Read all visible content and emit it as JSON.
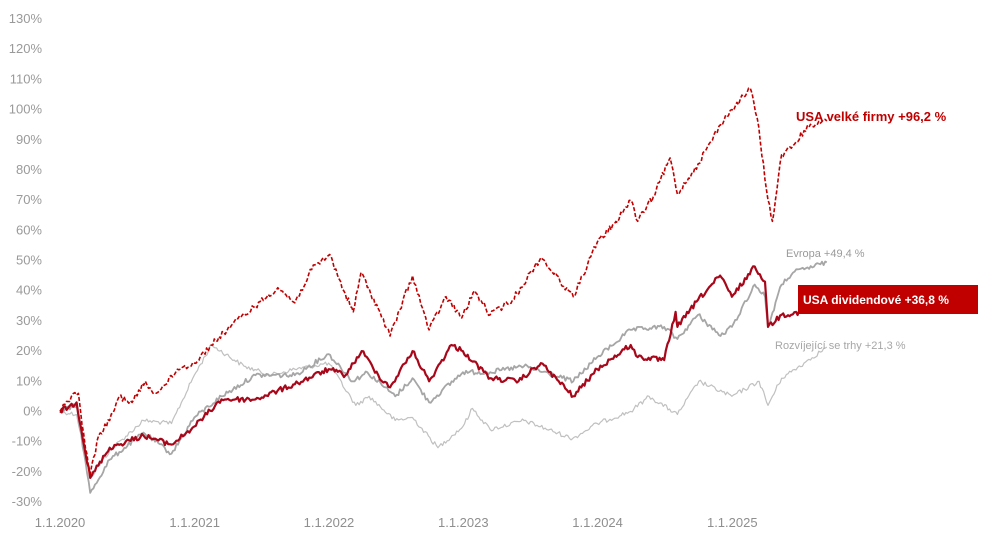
{
  "chart_data": {
    "type": "line",
    "title": "",
    "xlabel": "",
    "ylabel": "",
    "xlim": [
      "2020-01-01",
      "2026-06-01"
    ],
    "ylim": [
      -30,
      130
    ],
    "yticks": [
      "-30%",
      "-20%",
      "-10%",
      "0%",
      "10%",
      "20%",
      "30%",
      "40%",
      "50%",
      "60%",
      "70%",
      "80%",
      "90%",
      "100%",
      "110%",
      "120%",
      "130%"
    ],
    "xticks": [
      {
        "date": "2020-01-01",
        "label": "1.1.2020"
      },
      {
        "date": "2021-01-01",
        "label": "1.1.2021"
      },
      {
        "date": "2022-01-01",
        "label": "1.1.2022"
      },
      {
        "date": "2023-01-01",
        "label": "1.1.2023"
      },
      {
        "date": "2024-01-01",
        "label": "1.1.2024"
      },
      {
        "date": "2025-01-01",
        "label": "1.1.2025"
      }
    ],
    "grid": false,
    "legend": "none",
    "series": [
      {
        "name": "USA velké firmy",
        "label": "USA velké firmy +96,2 %",
        "color": "#c00000",
        "dash": "dashed",
        "points": [
          [
            "2020-01-01",
            0
          ],
          [
            "2020-02-01",
            5
          ],
          [
            "2020-02-20",
            6
          ],
          [
            "2020-03-10",
            -12
          ],
          [
            "2020-03-23",
            -21
          ],
          [
            "2020-04-15",
            -8
          ],
          [
            "2020-05-15",
            -3
          ],
          [
            "2020-06-10",
            5
          ],
          [
            "2020-07-15",
            3
          ],
          [
            "2020-08-20",
            10
          ],
          [
            "2020-09-10",
            6
          ],
          [
            "2020-10-15",
            9
          ],
          [
            "2020-11-15",
            14
          ],
          [
            "2020-12-31",
            16
          ],
          [
            "2021-02-15",
            22
          ],
          [
            "2021-04-15",
            29
          ],
          [
            "2021-06-15",
            35
          ],
          [
            "2021-08-15",
            41
          ],
          [
            "2021-09-30",
            36
          ],
          [
            "2021-11-15",
            47
          ],
          [
            "2022-01-03",
            52
          ],
          [
            "2022-02-10",
            40
          ],
          [
            "2022-03-08",
            33
          ],
          [
            "2022-03-29",
            46
          ],
          [
            "2022-05-15",
            34
          ],
          [
            "2022-06-16",
            25
          ],
          [
            "2022-08-16",
            45
          ],
          [
            "2022-09-30",
            27
          ],
          [
            "2022-11-15",
            38
          ],
          [
            "2022-12-28",
            31
          ],
          [
            "2023-02-01",
            40
          ],
          [
            "2023-03-15",
            32
          ],
          [
            "2023-05-15",
            37
          ],
          [
            "2023-07-31",
            51
          ],
          [
            "2023-10-27",
            38
          ],
          [
            "2023-12-31",
            56
          ],
          [
            "2024-02-15",
            62
          ],
          [
            "2024-03-31",
            70
          ],
          [
            "2024-04-19",
            63
          ],
          [
            "2024-05-31",
            71
          ],
          [
            "2024-07-16",
            84
          ],
          [
            "2024-08-05",
            72
          ],
          [
            "2024-09-30",
            82
          ],
          [
            "2024-11-30",
            95
          ],
          [
            "2024-12-31",
            100
          ],
          [
            "2025-02-19",
            107
          ],
          [
            "2025-03-10",
            97
          ],
          [
            "2025-04-08",
            70
          ],
          [
            "2025-04-20",
            63
          ],
          [
            "2025-05-15",
            85
          ],
          [
            "2025-06-15",
            88
          ],
          [
            "2025-07-15",
            93
          ],
          [
            "2025-08-15",
            95
          ],
          [
            "2025-09-15",
            96.2
          ]
        ]
      },
      {
        "name": "USA dividendové",
        "label": "USA dividendové +36,8 %",
        "color": "#a8071a",
        "dash": "solid",
        "points": [
          [
            "2020-01-01",
            0
          ],
          [
            "2020-02-15",
            3
          ],
          [
            "2020-03-23",
            -22
          ],
          [
            "2020-05-15",
            -12
          ],
          [
            "2020-08-15",
            -8
          ],
          [
            "2020-10-30",
            -11
          ],
          [
            "2020-12-31",
            -5
          ],
          [
            "2021-03-15",
            4
          ],
          [
            "2021-06-15",
            4
          ],
          [
            "2021-09-30",
            9
          ],
          [
            "2021-12-31",
            14
          ],
          [
            "2022-02-15",
            12
          ],
          [
            "2022-03-31",
            20
          ],
          [
            "2022-05-15",
            12
          ],
          [
            "2022-06-16",
            8
          ],
          [
            "2022-08-16",
            20
          ],
          [
            "2022-09-30",
            10
          ],
          [
            "2022-11-30",
            22
          ],
          [
            "2022-12-31",
            20
          ],
          [
            "2023-03-15",
            11
          ],
          [
            "2023-05-31",
            10
          ],
          [
            "2023-07-31",
            16
          ],
          [
            "2023-10-27",
            5
          ],
          [
            "2023-12-31",
            14
          ],
          [
            "2024-03-31",
            22
          ],
          [
            "2024-04-19",
            18
          ],
          [
            "2024-06-30",
            17
          ],
          [
            "2024-07-31",
            33
          ],
          [
            "2024-08-05",
            28
          ],
          [
            "2024-09-30",
            37
          ],
          [
            "2024-11-29",
            45
          ],
          [
            "2024-12-31",
            38
          ],
          [
            "2025-03-03",
            48
          ],
          [
            "2025-03-31",
            43
          ],
          [
            "2025-04-08",
            28
          ],
          [
            "2025-05-15",
            32
          ],
          [
            "2025-07-15",
            33
          ],
          [
            "2025-09-15",
            36.8
          ]
        ]
      },
      {
        "name": "Evropa",
        "label": "Evropa +49,4 %",
        "color": "#a6a6a6",
        "dash": "solid",
        "points": [
          [
            "2020-01-01",
            0
          ],
          [
            "2020-02-15",
            2
          ],
          [
            "2020-03-23",
            -27
          ],
          [
            "2020-05-15",
            -16
          ],
          [
            "2020-08-15",
            -7
          ],
          [
            "2020-10-30",
            -14
          ],
          [
            "2020-12-31",
            -2
          ],
          [
            "2021-03-15",
            5
          ],
          [
            "2021-06-15",
            12
          ],
          [
            "2021-09-30",
            12
          ],
          [
            "2021-12-31",
            19
          ],
          [
            "2022-03-07",
            10
          ],
          [
            "2022-04-15",
            13
          ],
          [
            "2022-06-30",
            5
          ],
          [
            "2022-08-16",
            11
          ],
          [
            "2022-09-30",
            3
          ],
          [
            "2022-12-31",
            13
          ],
          [
            "2023-03-15",
            13
          ],
          [
            "2023-06-15",
            15
          ],
          [
            "2023-10-27",
            10
          ],
          [
            "2023-12-31",
            18
          ],
          [
            "2024-03-31",
            27
          ],
          [
            "2024-06-30",
            28
          ],
          [
            "2024-08-05",
            24
          ],
          [
            "2024-09-30",
            32
          ],
          [
            "2024-11-30",
            25
          ],
          [
            "2024-12-31",
            28
          ],
          [
            "2025-03-03",
            42
          ],
          [
            "2025-03-31",
            38
          ],
          [
            "2025-04-08",
            28
          ],
          [
            "2025-05-15",
            42
          ],
          [
            "2025-06-15",
            46
          ],
          [
            "2025-09-15",
            49.4
          ]
        ]
      },
      {
        "name": "Rozvíjející se trhy",
        "label": "Rozvíjející se trhy +21,3 %",
        "color": "#c0c0c0",
        "dash": "solid",
        "points": [
          [
            "2020-01-01",
            0
          ],
          [
            "2020-02-15",
            -1
          ],
          [
            "2020-03-23",
            -22
          ],
          [
            "2020-05-15",
            -13
          ],
          [
            "2020-08-15",
            -3
          ],
          [
            "2020-10-30",
            -4
          ],
          [
            "2020-12-31",
            12
          ],
          [
            "2021-02-16",
            22
          ],
          [
            "2021-05-15",
            15
          ],
          [
            "2021-07-27",
            12
          ],
          [
            "2021-09-30",
            14
          ],
          [
            "2021-12-31",
            16
          ],
          [
            "2022-03-15",
            2
          ],
          [
            "2022-04-20",
            5
          ],
          [
            "2022-06-30",
            -3
          ],
          [
            "2022-08-16",
            -2
          ],
          [
            "2022-10-24",
            -12
          ],
          [
            "2022-12-31",
            -5
          ],
          [
            "2023-01-26",
            1
          ],
          [
            "2023-03-15",
            -6
          ],
          [
            "2023-06-15",
            -3
          ],
          [
            "2023-10-25",
            -9
          ],
          [
            "2023-12-31",
            -4
          ],
          [
            "2024-03-31",
            0
          ],
          [
            "2024-05-20",
            5
          ],
          [
            "2024-08-05",
            -1
          ],
          [
            "2024-10-02",
            10
          ],
          [
            "2024-12-31",
            5
          ],
          [
            "2025-03-15",
            10
          ],
          [
            "2025-04-08",
            2
          ],
          [
            "2025-05-15",
            11
          ],
          [
            "2025-07-15",
            16
          ],
          [
            "2025-09-15",
            21.3
          ]
        ]
      }
    ]
  }
}
